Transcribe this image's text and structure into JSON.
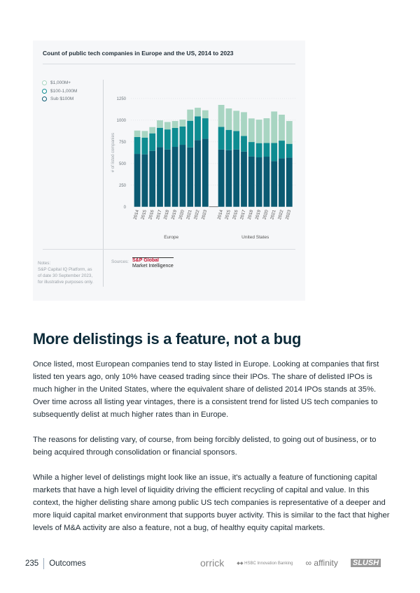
{
  "chart_data": {
    "type": "bar",
    "stacked": true,
    "title": "Count of public tech companies in Europe and the US, 2014 to 2023",
    "ylabel": "# of listed companies",
    "ylim": [
      0,
      1250
    ],
    "yticks": [
      0,
      250,
      500,
      750,
      1000,
      1250
    ],
    "grid": true,
    "legend_position": "left",
    "groups": [
      "Europe",
      "United States"
    ],
    "categories": [
      "2014",
      "2015",
      "2016",
      "2017",
      "2018",
      "2019",
      "2020",
      "2021",
      "2022",
      "2023"
    ],
    "series": [
      {
        "name": "Sub $100M",
        "color": "#0b5a72",
        "Europe": [
          610,
          605,
          645,
          688,
          661,
          691,
          715,
          685,
          769,
          785
        ],
        "United States": [
          661,
          653,
          661,
          637,
          581,
          570,
          578,
          527,
          559,
          567
        ]
      },
      {
        "name": "$100-1,000M",
        "color": "#0e8c91",
        "Europe": [
          194,
          193,
          202,
          223,
          231,
          218,
          210,
          307,
          274,
          236
        ],
        "United States": [
          261,
          234,
          213,
          180,
          166,
          164,
          158,
          209,
          204,
          159
        ]
      },
      {
        "name": "$1,000M+",
        "color": "#a8d5c2",
        "Europe": [
          75,
          76,
          72,
          86,
          86,
          80,
          80,
          129,
          99,
          92
        ],
        "United States": [
          253,
          247,
          233,
          274,
          272,
          271,
          285,
          363,
          299,
          263
        ]
      }
    ]
  },
  "legend_order": [
    2,
    1,
    0
  ],
  "notes": {
    "label": "Notes:",
    "text": "S&P Capital IQ Platform, as of date 30 September 2023, for illustrative purposes only."
  },
  "sources": {
    "label": "Sources:",
    "logo_line1": "S&P Global",
    "logo_line2": "Market Intelligence"
  },
  "article": {
    "heading": "More delistings is a feature, not a bug",
    "paragraphs": [
      "Once listed, most European companies tend to stay listed in Europe. Looking at companies that first listed ten years ago, only 10% have ceased trading since their IPOs. The share of delisted IPOs is much higher in the United States, where the equivalent share of delisted 2014 IPOs stands at 35%. Over time across all listing year vintages, there is a consistent trend for listed US tech companies to subsequently delist at much higher rates than in Europe.",
      "The reasons for delisting vary, of course, from being forcibly delisted, to going out of business, or to being acquired through consolidation or financial sponsors.",
      "While a higher level of delistings might look like an issue, it's actually a feature of functioning capital markets that have a high level of liquidity driving the efficient recycling of capital and value. In this context, the higher delisting share among public US tech companies is representative of a deeper and more liquid capital market environment that supports buyer activity. This is similar to the fact that higher levels of M&A activity are also a feature, not a bug, of healthy equity capital markets."
    ]
  },
  "footer": {
    "page_number": "235",
    "section": "Outcomes",
    "logos": [
      "orrick",
      "HSBC Innovation Banking",
      "affinity",
      "SLUSH"
    ]
  }
}
